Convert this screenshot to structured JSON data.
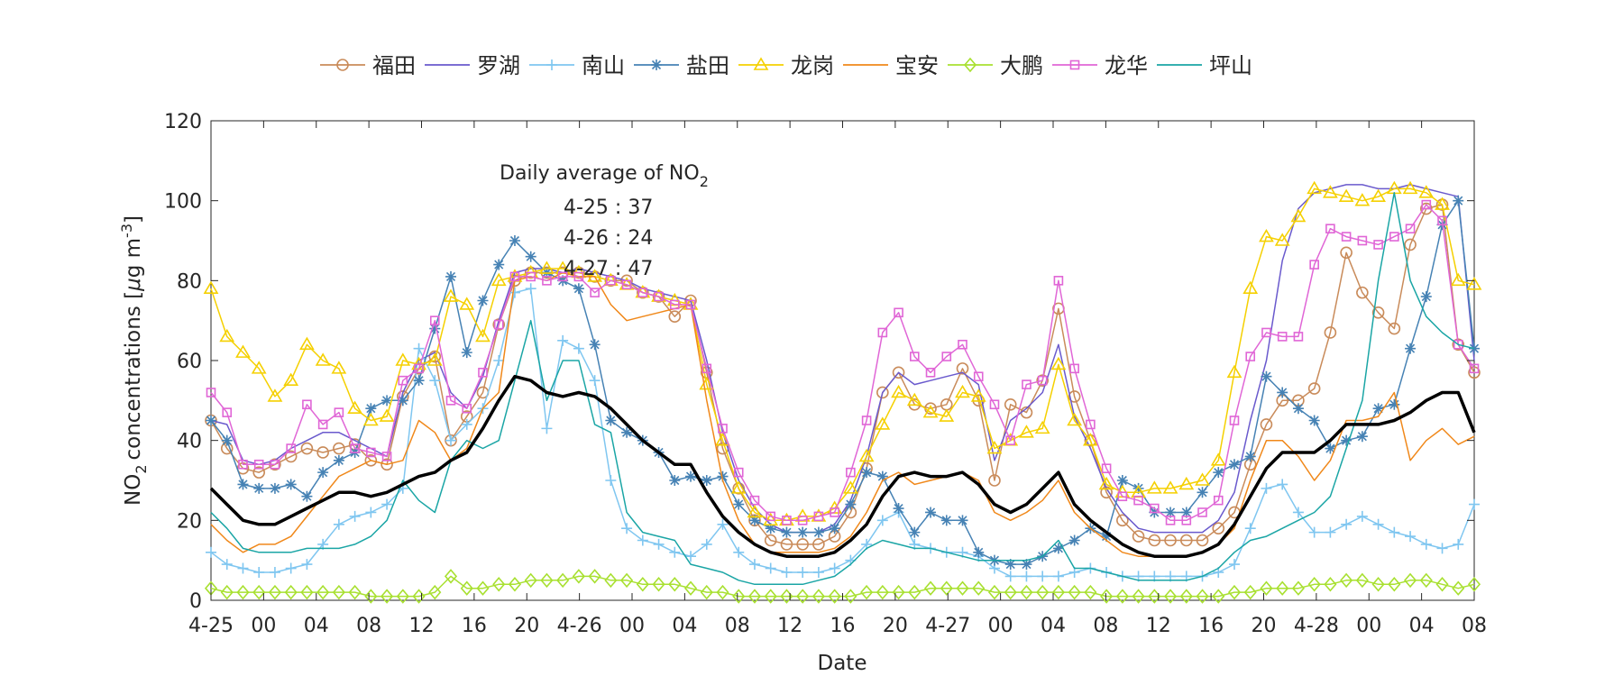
{
  "chart_data": {
    "type": "line",
    "title": "",
    "xlabel": "Date",
    "ylabel": "concentrations [",
    "ylabel_prefix": "NO",
    "ylabel_sub": "2",
    "ylabel_unit_mu": "μ",
    "ylabel_unit_g": "g m",
    "ylabel_unit_sup": "-3",
    "ylabel_close": "]",
    "ylim": [
      0,
      120
    ],
    "yticks": [
      "0",
      "20",
      "40",
      "60",
      "80",
      "100",
      "120"
    ],
    "x_range_hours": [
      0,
      79
    ],
    "xticks": [
      {
        "h": 0,
        "label": "4-25"
      },
      {
        "h": 2,
        "label": "00"
      },
      {
        "h": 6,
        "label": "04"
      },
      {
        "h": 10,
        "label": "08"
      },
      {
        "h": 14,
        "label": "12"
      },
      {
        "h": 18,
        "label": "16"
      },
      {
        "h": 22,
        "label": "20"
      },
      {
        "h": 26,
        "label": "4-26"
      },
      {
        "h": 30,
        "label": "00"
      },
      {
        "h": 34,
        "label": "04"
      },
      {
        "h": 38,
        "label": "08"
      },
      {
        "h": 42,
        "label": "12"
      },
      {
        "h": 46,
        "label": "16"
      },
      {
        "h": 50,
        "label": "20"
      },
      {
        "h": 54,
        "label": "4-27"
      },
      {
        "h": 58,
        "label": "00"
      },
      {
        "h": 62,
        "label": "04"
      },
      {
        "h": 66,
        "label": "08"
      },
      {
        "h": 70,
        "label": "12"
      },
      {
        "h": 74,
        "label": "16"
      },
      {
        "h": 78,
        "label": "20"
      }
    ],
    "xticks_tail": [
      {
        "h": 81,
        "label": "4-28"
      },
      {
        "h": 85,
        "label": "00"
      },
      {
        "h": 89,
        "label": "04"
      },
      {
        "h": 93,
        "label": "08"
      }
    ],
    "annotation": {
      "title_prefix": "Daily average of NO",
      "title_sub": "2",
      "lines": [
        "4-25 : 37",
        "4-26 : 24",
        "4-27 : 47"
      ]
    },
    "series": [
      {
        "name": "福田",
        "color": "#C98B5A",
        "marker": "circle",
        "values": [
          45,
          38,
          33,
          32,
          34,
          36,
          38,
          37,
          38,
          39,
          35,
          34,
          51,
          58,
          61,
          40,
          46,
          52,
          69,
          80,
          82,
          82,
          82,
          82,
          81,
          80,
          80,
          77,
          76,
          71,
          75,
          57,
          38,
          28,
          20,
          15,
          14,
          14,
          14,
          16,
          22,
          33,
          52,
          57,
          49,
          48,
          49,
          58,
          50,
          30,
          49,
          47,
          55,
          73,
          51,
          40,
          27,
          20,
          16,
          15,
          15,
          15,
          15,
          18,
          22,
          34,
          44,
          50,
          50,
          53,
          67,
          87,
          77,
          72,
          68,
          89,
          98,
          99,
          64,
          57
        ]
      },
      {
        "name": "罗湖",
        "color": "#6A5ACD",
        "marker": "none",
        "values": [
          45,
          44,
          35,
          34,
          35,
          38,
          40,
          42,
          42,
          40,
          38,
          36,
          52,
          60,
          62,
          52,
          48,
          56,
          70,
          82,
          83,
          83,
          82,
          83,
          82,
          81,
          80,
          78,
          77,
          76,
          75,
          60,
          42,
          30,
          23,
          19,
          17,
          17,
          17,
          19,
          25,
          36,
          52,
          57,
          54,
          55,
          56,
          57,
          54,
          35,
          45,
          48,
          52,
          64,
          46,
          38,
          28,
          22,
          18,
          17,
          17,
          17,
          17,
          20,
          27,
          45,
          60,
          85,
          98,
          102,
          103,
          104,
          104,
          103,
          103,
          104,
          103,
          102,
          101,
          60
        ]
      },
      {
        "name": "南山",
        "color": "#7FC6F0",
        "marker": "plus",
        "values": [
          12,
          9,
          8,
          7,
          7,
          8,
          9,
          14,
          19,
          21,
          22,
          24,
          28,
          63,
          55,
          40,
          44,
          48,
          60,
          77,
          78,
          43,
          65,
          63,
          55,
          30,
          18,
          15,
          14,
          12,
          11,
          14,
          19,
          12,
          9,
          8,
          7,
          7,
          7,
          8,
          10,
          14,
          20,
          22,
          14,
          13,
          12,
          12,
          11,
          8,
          6,
          6,
          6,
          6,
          7,
          8,
          7,
          6,
          6,
          6,
          6,
          6,
          6,
          7,
          9,
          18,
          28,
          29,
          22,
          17,
          17,
          19,
          21,
          19,
          17,
          16,
          14,
          13,
          14,
          24
        ]
      },
      {
        "name": "盐田",
        "color": "#4682B4",
        "marker": "star",
        "values": [
          45,
          40,
          29,
          28,
          28,
          29,
          26,
          32,
          35,
          37,
          48,
          50,
          50,
          55,
          68,
          81,
          62,
          75,
          84,
          90,
          86,
          82,
          80,
          78,
          64,
          45,
          42,
          40,
          37,
          30,
          31,
          30,
          31,
          24,
          20,
          18,
          17,
          17,
          17,
          18,
          24,
          32,
          31,
          23,
          17,
          22,
          20,
          20,
          12,
          10,
          9,
          9,
          11,
          13,
          15,
          18,
          16,
          30,
          28,
          22,
          22,
          22,
          27,
          32,
          34,
          36,
          56,
          52,
          48,
          45,
          38,
          40,
          41,
          48,
          49,
          63,
          76,
          94,
          100,
          63
        ]
      },
      {
        "name": "龙岗",
        "color": "#F5D000",
        "marker": "triangle",
        "values": [
          78,
          66,
          62,
          58,
          51,
          55,
          64,
          60,
          58,
          48,
          45,
          46,
          60,
          59,
          60,
          76,
          74,
          66,
          80,
          81,
          82,
          83,
          83,
          82,
          81,
          80,
          79,
          77,
          76,
          75,
          74,
          54,
          40,
          28,
          22,
          20,
          20,
          21,
          21,
          23,
          28,
          36,
          44,
          52,
          50,
          47,
          46,
          52,
          51,
          38,
          40,
          42,
          43,
          59,
          45,
          40,
          29,
          27,
          27,
          28,
          28,
          29,
          30,
          35,
          57,
          78,
          91,
          90,
          96,
          103,
          102,
          101,
          100,
          101,
          103,
          103,
          102,
          99,
          80,
          79
        ]
      },
      {
        "name": "宝安",
        "color": "#F0881A",
        "marker": "none",
        "values": [
          19,
          15,
          12,
          14,
          14,
          16,
          21,
          26,
          31,
          33,
          35,
          34,
          35,
          45,
          42,
          35,
          38,
          48,
          52,
          80,
          81,
          80,
          82,
          81,
          81,
          74,
          70,
          71,
          72,
          73,
          74,
          50,
          30,
          20,
          14,
          12,
          12,
          12,
          12,
          13,
          16,
          22,
          30,
          32,
          29,
          30,
          31,
          32,
          30,
          22,
          20,
          22,
          25,
          30,
          22,
          18,
          15,
          12,
          11,
          11,
          11,
          11,
          12,
          14,
          18,
          30,
          40,
          40,
          36,
          30,
          35,
          45,
          45,
          46,
          52,
          35,
          40,
          43,
          39,
          41
        ]
      },
      {
        "name": "大鹏",
        "color": "#A8E030",
        "marker": "diamond",
        "values": [
          3,
          2,
          2,
          2,
          2,
          2,
          2,
          2,
          2,
          2,
          1,
          1,
          1,
          1,
          2,
          6,
          3,
          3,
          4,
          4,
          5,
          5,
          5,
          6,
          6,
          5,
          5,
          4,
          4,
          4,
          3,
          2,
          2,
          1,
          1,
          1,
          1,
          1,
          1,
          1,
          1,
          2,
          2,
          2,
          2,
          3,
          3,
          3,
          3,
          2,
          2,
          2,
          2,
          2,
          2,
          2,
          1,
          1,
          1,
          1,
          1,
          1,
          1,
          1,
          2,
          2,
          3,
          3,
          3,
          4,
          4,
          5,
          5,
          4,
          4,
          5,
          5,
          4,
          3,
          4
        ]
      },
      {
        "name": "龙华",
        "color": "#E066D6",
        "marker": "square",
        "values": [
          52,
          47,
          34,
          34,
          34,
          38,
          49,
          44,
          47,
          38,
          37,
          36,
          55,
          58,
          70,
          50,
          48,
          57,
          69,
          81,
          81,
          80,
          81,
          81,
          77,
          80,
          79,
          77,
          76,
          74,
          74,
          58,
          43,
          32,
          25,
          21,
          20,
          20,
          21,
          22,
          32,
          45,
          67,
          72,
          61,
          57,
          61,
          64,
          56,
          49,
          40,
          54,
          55,
          80,
          58,
          44,
          33,
          26,
          25,
          23,
          20,
          20,
          22,
          25,
          45,
          61,
          67,
          66,
          66,
          84,
          93,
          91,
          90,
          89,
          91,
          93,
          99,
          95,
          64,
          58
        ]
      },
      {
        "name": "坪山",
        "color": "#1AA5A5",
        "marker": "none",
        "values": [
          22,
          18,
          13,
          12,
          12,
          12,
          13,
          13,
          13,
          14,
          16,
          20,
          30,
          25,
          22,
          35,
          40,
          38,
          40,
          55,
          70,
          50,
          60,
          60,
          44,
          42,
          22,
          17,
          16,
          15,
          9,
          8,
          7,
          5,
          4,
          4,
          4,
          4,
          5,
          6,
          9,
          13,
          15,
          14,
          13,
          13,
          12,
          11,
          10,
          10,
          10,
          10,
          11,
          15,
          8,
          8,
          7,
          6,
          5,
          5,
          5,
          5,
          6,
          8,
          12,
          15,
          16,
          18,
          20,
          22,
          26,
          38,
          50,
          80,
          102,
          80,
          71,
          67,
          64,
          63
        ]
      },
      {
        "name": "average",
        "color": "#000000",
        "marker": "none",
        "legend": false,
        "values": [
          28,
          24,
          20,
          19,
          19,
          21,
          23,
          25,
          27,
          27,
          26,
          27,
          29,
          31,
          32,
          35,
          37,
          43,
          50,
          56,
          55,
          52,
          51,
          52,
          51,
          48,
          44,
          40,
          37,
          34,
          34,
          27,
          21,
          17,
          14,
          12,
          11,
          11,
          11,
          12,
          15,
          19,
          26,
          31,
          32,
          31,
          31,
          32,
          29,
          24,
          22,
          24,
          28,
          32,
          24,
          20,
          17,
          14,
          12,
          11,
          11,
          11,
          12,
          14,
          19,
          26,
          33,
          37,
          37,
          37,
          40,
          44,
          44,
          44,
          45,
          47,
          50,
          52,
          52,
          42
        ]
      }
    ]
  }
}
